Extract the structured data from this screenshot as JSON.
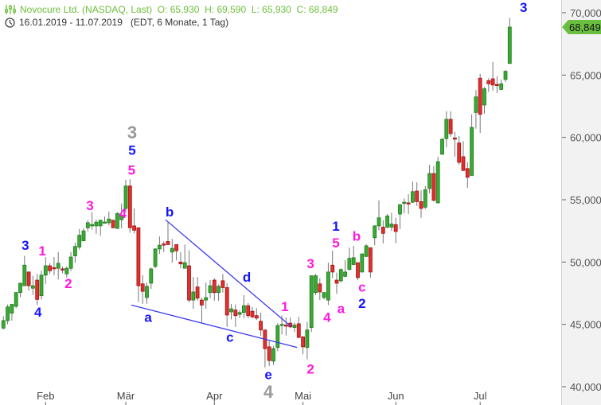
{
  "header": {
    "title": "Novocure Ltd. (NASDAQ, Last)",
    "ohlc": "O: 65,930  H: 69,590  L: 65,930  C: 68,849",
    "range": "16.01.2019 - 11.07.2019",
    "meta": "(EDT, 6 Monate, 1 Tag)",
    "icons": [
      "chart-settings-icon",
      "clock-icon"
    ]
  },
  "chart_data": {
    "type": "candlestick",
    "ylim": [
      38500,
      71000
    ],
    "y_ticks": [
      {
        "value": 70000,
        "label": "70,000"
      },
      {
        "value": 65000,
        "label": "65,000"
      },
      {
        "value": 60000,
        "label": "60,000"
      },
      {
        "value": 55000,
        "label": "55,000"
      },
      {
        "value": 50000,
        "label": "50,000"
      },
      {
        "value": 45000,
        "label": "45,000"
      },
      {
        "value": 40000,
        "label": "40,000"
      }
    ],
    "x_ticks": [
      {
        "label": "Feb",
        "candle": 10
      },
      {
        "label": "Mär",
        "candle": 29
      },
      {
        "label": "Apr",
        "candle": 50
      },
      {
        "label": "Mai",
        "candle": 71
      },
      {
        "label": "Jun",
        "candle": 93
      },
      {
        "label": "Jul",
        "candle": 113
      }
    ],
    "last_price": {
      "value": 68849,
      "label": "68,849"
    },
    "colors": {
      "up": "#3aaa35",
      "up_border": "#1f7a1f",
      "down": "#e03030",
      "down_border": "#a31212",
      "wick": "#777777",
      "wave_blue": "#1414ff",
      "wave_magenta": "#ff19e0",
      "wave_gray": "#9a9a9a",
      "trendline": "#3b3bf0",
      "last_badge": "#6abf40"
    },
    "candles_ohlc": [
      [
        44700,
        45650,
        44600,
        45300
      ],
      [
        45300,
        46600,
        45000,
        46400
      ],
      [
        45900,
        46650,
        45300,
        46600
      ],
      [
        46450,
        47600,
        46300,
        47550
      ],
      [
        47550,
        48350,
        47200,
        48300
      ],
      [
        48100,
        50500,
        48100,
        49750
      ],
      [
        49200,
        49250,
        47700,
        48100
      ],
      [
        47900,
        48900,
        47350,
        48100
      ],
      [
        48550,
        49050,
        46550,
        47000
      ],
      [
        47300,
        49300,
        47000,
        48950
      ],
      [
        48950,
        50400,
        48250,
        49700
      ],
      [
        49700,
        49900,
        49050,
        49300
      ],
      [
        49550,
        50400,
        48950,
        49500
      ],
      [
        49500,
        50800,
        48600,
        49900
      ],
      [
        49450,
        49650,
        49100,
        49400
      ],
      [
        49050,
        49650,
        48750,
        49500
      ],
      [
        49500,
        50800,
        49300,
        50400
      ],
      [
        50500,
        51550,
        49950,
        51250
      ],
      [
        51200,
        52650,
        51000,
        52150
      ],
      [
        51700,
        52700,
        51700,
        52500
      ],
      [
        52750,
        53350,
        52450,
        53150
      ],
      [
        52900,
        54000,
        52600,
        53000
      ],
      [
        52900,
        53400,
        52250,
        53200
      ],
      [
        52900,
        53400,
        52100,
        53350
      ],
      [
        53200,
        53650,
        53100,
        53210
      ],
      [
        53150,
        54050,
        52950,
        53450
      ],
      [
        53350,
        53400,
        52700,
        52750
      ],
      [
        52700,
        54000,
        52650,
        53900
      ],
      [
        53400,
        54700,
        52700,
        53700
      ],
      [
        54300,
        56600,
        54000,
        56100
      ],
      [
        56100,
        56650,
        52350,
        52750
      ],
      [
        52900,
        54300,
        52300,
        52550
      ],
      [
        52750,
        52750,
        46800,
        48100
      ],
      [
        48250,
        48950,
        46650,
        47650
      ],
      [
        47150,
        48350,
        46650,
        48050
      ],
      [
        48300,
        49550,
        47850,
        49450
      ],
      [
        49650,
        51100,
        49500,
        51050
      ],
      [
        51050,
        52050,
        50650,
        51350
      ],
      [
        51450,
        51650,
        50800,
        51400
      ],
      [
        51650,
        53250,
        51400,
        51400
      ],
      [
        50800,
        51850,
        49950,
        51100
      ],
      [
        51400,
        51400,
        50150,
        50900
      ],
      [
        50000,
        50800,
        49500,
        49850
      ],
      [
        49500,
        51400,
        49500,
        49950
      ],
      [
        49700,
        50950,
        46750,
        46950
      ],
      [
        46950,
        48800,
        46250,
        47600
      ],
      [
        48000,
        48800,
        46900,
        47100
      ],
      [
        46950,
        47150,
        45150,
        46550
      ],
      [
        46950,
        48350,
        46250,
        47150
      ],
      [
        47550,
        48550,
        47100,
        48100
      ],
      [
        48550,
        48700,
        46900,
        47550
      ],
      [
        47550,
        48200,
        46900,
        48050
      ],
      [
        48500,
        49050,
        47550,
        47950
      ],
      [
        47950,
        48300,
        44800,
        45750
      ],
      [
        46000,
        46650,
        45400,
        46250
      ],
      [
        46150,
        46600,
        44800,
        45700
      ],
      [
        45800,
        46150,
        45500,
        45950
      ],
      [
        45950,
        47350,
        45500,
        46500
      ],
      [
        46500,
        46700,
        45500,
        45700
      ],
      [
        46050,
        46400,
        45500,
        45600
      ],
      [
        45700,
        46300,
        45350,
        45500
      ],
      [
        45250,
        45950,
        44100,
        44550
      ],
      [
        44550,
        44550,
        41550,
        43050
      ],
      [
        43200,
        43650,
        41650,
        42100
      ],
      [
        42050,
        43250,
        41750,
        43050
      ],
      [
        43150,
        45100,
        42850,
        44900
      ],
      [
        44950,
        45700,
        44200,
        45000
      ],
      [
        44950,
        45550,
        44100,
        44900
      ],
      [
        45100,
        45550,
        44700,
        44800
      ],
      [
        44750,
        45150,
        44400,
        44950
      ],
      [
        45050,
        45600,
        43900,
        43950
      ],
      [
        44000,
        44050,
        42600,
        43200
      ],
      [
        43150,
        45200,
        42200,
        44550
      ],
      [
        44750,
        48900,
        44400,
        48900
      ],
      [
        47550,
        49050,
        47350,
        48900
      ],
      [
        48250,
        48700,
        46950,
        47600
      ],
      [
        47150,
        47600,
        47000,
        47550
      ],
      [
        46950,
        49950,
        46550,
        49200
      ],
      [
        49750,
        50900,
        48700,
        49200
      ],
      [
        48550,
        49150,
        47450,
        48300
      ],
      [
        48500,
        49500,
        48350,
        49400
      ],
      [
        48850,
        50150,
        48800,
        49200
      ],
      [
        49400,
        51150,
        49350,
        50300
      ],
      [
        49800,
        51300,
        49750,
        50350
      ],
      [
        49950,
        49950,
        48550,
        48750
      ],
      [
        49200,
        50700,
        49150,
        50650
      ],
      [
        50450,
        51450,
        50400,
        51300
      ],
      [
        51150,
        51150,
        48750,
        49200
      ],
      [
        51950,
        52950,
        51350,
        52900
      ],
      [
        52900,
        54950,
        52550,
        53550
      ],
      [
        52800,
        53350,
        51500,
        52300
      ],
      [
        52800,
        53850,
        52700,
        53700
      ],
      [
        52800,
        53950,
        52500,
        53050
      ],
      [
        53000,
        53550,
        51500,
        52450
      ],
      [
        53850,
        54650,
        52650,
        54600
      ],
      [
        54700,
        55100,
        53900,
        54800
      ],
      [
        54750,
        55450,
        53850,
        54650
      ],
      [
        54800,
        56450,
        54750,
        55650
      ],
      [
        55700,
        56400,
        54500,
        54850
      ],
      [
        54850,
        55750,
        53550,
        54300
      ],
      [
        54400,
        56100,
        54250,
        55800
      ],
      [
        55900,
        57800,
        55500,
        57100
      ],
      [
        57100,
        57700,
        54850,
        54950
      ],
      [
        54750,
        58450,
        54700,
        58050
      ],
      [
        58650,
        59950,
        58600,
        59850
      ],
      [
        59900,
        62100,
        59200,
        61450
      ],
      [
        61450,
        62100,
        60050,
        60300
      ],
      [
        59950,
        60450,
        58450,
        59900
      ],
      [
        59550,
        60100,
        57800,
        58000
      ],
      [
        58450,
        59700,
        57300,
        57350
      ],
      [
        57500,
        58000,
        55950,
        56800
      ],
      [
        56950,
        61850,
        56950,
        60800
      ],
      [
        62000,
        63800,
        60700,
        63250
      ],
      [
        64750,
        65100,
        60350,
        61850
      ],
      [
        62600,
        64050,
        61900,
        63900
      ],
      [
        64550,
        64750,
        63650,
        64300
      ],
      [
        64700,
        66050,
        63750,
        64200
      ],
      [
        64250,
        64900,
        63550,
        64200
      ],
      [
        63850,
        64650,
        63800,
        64300
      ],
      [
        64650,
        65400,
        64450,
        65300
      ],
      [
        65930,
        69590,
        65930,
        68849
      ]
    ],
    "wave_labels": [
      {
        "text": "3",
        "color": "blue",
        "candle": 5.2,
        "price": 51350
      },
      {
        "text": "4",
        "color": "blue",
        "candle": 8.2,
        "price": 46000
      },
      {
        "text": "1",
        "color": "magenta",
        "candle": 9.2,
        "price": 50900
      },
      {
        "text": "2",
        "color": "magenta",
        "candle": 15.4,
        "price": 48300
      },
      {
        "text": "3",
        "color": "magenta",
        "candle": 20.5,
        "price": 54550
      },
      {
        "text": "4",
        "color": "magenta",
        "candle": 28.3,
        "price": 53900
      },
      {
        "text": "3",
        "color": "gray",
        "candle": 30.5,
        "price": 60300
      },
      {
        "text": "5",
        "color": "blue",
        "candle": 30.5,
        "price": 59000
      },
      {
        "text": "5",
        "color": "magenta",
        "candle": 30.4,
        "price": 57400
      },
      {
        "text": "a",
        "color": "blue",
        "candle": 34.3,
        "price": 45600
      },
      {
        "text": "b",
        "color": "blue",
        "candle": 39.4,
        "price": 54050
      },
      {
        "text": "c",
        "color": "blue",
        "candle": 53.7,
        "price": 44000
      },
      {
        "text": "d",
        "color": "blue",
        "candle": 57.7,
        "price": 48800
      },
      {
        "text": "e",
        "color": "blue",
        "candle": 62.8,
        "price": 41000
      },
      {
        "text": "4",
        "color": "gray",
        "candle": 62.8,
        "price": 39500
      },
      {
        "text": "1",
        "color": "magenta",
        "candle": 66.7,
        "price": 46450
      },
      {
        "text": "2",
        "color": "magenta",
        "candle": 72.8,
        "price": 41450
      },
      {
        "text": "3",
        "color": "magenta",
        "candle": 72.8,
        "price": 49900
      },
      {
        "text": "4",
        "color": "magenta",
        "candle": 76.7,
        "price": 45600
      },
      {
        "text": "1",
        "color": "blue",
        "candle": 78.8,
        "price": 52900
      },
      {
        "text": "5",
        "color": "magenta",
        "candle": 78.8,
        "price": 51550
      },
      {
        "text": "a",
        "color": "magenta",
        "candle": 80.0,
        "price": 46300
      },
      {
        "text": "b",
        "color": "magenta",
        "candle": 83.7,
        "price": 52100
      },
      {
        "text": "c",
        "color": "magenta",
        "candle": 85.0,
        "price": 48000
      },
      {
        "text": "2",
        "color": "blue",
        "candle": 85.0,
        "price": 46700
      },
      {
        "text": "3",
        "color": "blue",
        "candle": 123.3,
        "price": 70450
      }
    ],
    "trendlines": [
      {
        "from": {
          "candle": 38.4,
          "price": 53400
        },
        "to": {
          "candle": 68.1,
          "price": 44850
        }
      },
      {
        "from": {
          "candle": 30.3,
          "price": 46550
        },
        "to": {
          "candle": 69.6,
          "price": 43150
        }
      }
    ]
  }
}
